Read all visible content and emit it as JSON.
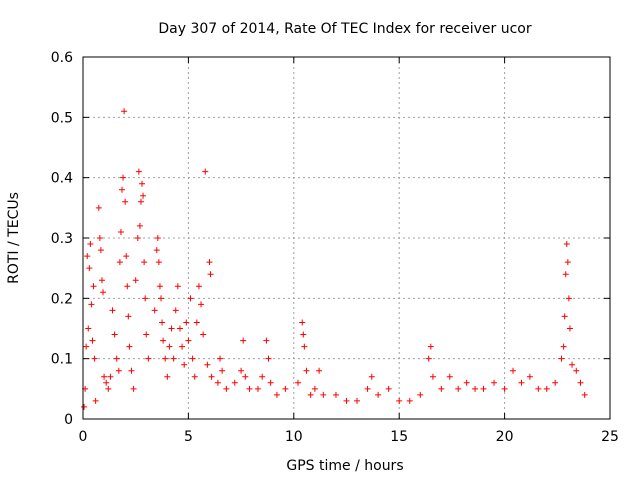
{
  "chart_data": {
    "type": "scatter",
    "title": "Day 307 of 2014, Rate Of TEC Index for receiver ucor",
    "xlabel": "GPS time / hours",
    "ylabel": "ROTI / TECUs",
    "xlim": [
      0,
      25
    ],
    "ylim": [
      0,
      0.6
    ],
    "xticks": [
      0,
      5,
      10,
      15,
      20,
      25
    ],
    "yticks": [
      0,
      0.1,
      0.2,
      0.3,
      0.4,
      0.5,
      0.6
    ],
    "xtick_labels": [
      "0",
      "5",
      "10",
      "15",
      "20",
      "25"
    ],
    "ytick_labels": [
      "0",
      "0.1",
      "0.2",
      "0.3",
      "0.4",
      "0.5",
      "0.6"
    ],
    "grid": true,
    "marker": "+",
    "series": [
      {
        "name": "ROTI",
        "color": "#ff0000",
        "points": [
          [
            0.05,
            0.02
          ],
          [
            0.1,
            0.05
          ],
          [
            0.15,
            0.12
          ],
          [
            0.2,
            0.27
          ],
          [
            0.25,
            0.15
          ],
          [
            0.3,
            0.25
          ],
          [
            0.35,
            0.29
          ],
          [
            0.4,
            0.19
          ],
          [
            0.45,
            0.13
          ],
          [
            0.5,
            0.22
          ],
          [
            0.55,
            0.1
          ],
          [
            0.6,
            0.03
          ],
          [
            0.75,
            0.35
          ],
          [
            0.8,
            0.3
          ],
          [
            0.85,
            0.28
          ],
          [
            0.9,
            0.23
          ],
          [
            0.95,
            0.21
          ],
          [
            1.0,
            0.07
          ],
          [
            1.1,
            0.06
          ],
          [
            1.2,
            0.05
          ],
          [
            1.3,
            0.07
          ],
          [
            1.4,
            0.18
          ],
          [
            1.5,
            0.14
          ],
          [
            1.6,
            0.1
          ],
          [
            1.7,
            0.08
          ],
          [
            1.75,
            0.26
          ],
          [
            1.8,
            0.31
          ],
          [
            1.85,
            0.38
          ],
          [
            1.9,
            0.4
          ],
          [
            1.95,
            0.51
          ],
          [
            2.0,
            0.36
          ],
          [
            2.05,
            0.27
          ],
          [
            2.1,
            0.22
          ],
          [
            2.15,
            0.17
          ],
          [
            2.2,
            0.12
          ],
          [
            2.3,
            0.08
          ],
          [
            2.4,
            0.05
          ],
          [
            2.5,
            0.23
          ],
          [
            2.6,
            0.3
          ],
          [
            2.65,
            0.41
          ],
          [
            2.7,
            0.32
          ],
          [
            2.75,
            0.36
          ],
          [
            2.8,
            0.39
          ],
          [
            2.85,
            0.37
          ],
          [
            2.9,
            0.26
          ],
          [
            2.95,
            0.2
          ],
          [
            3.0,
            0.14
          ],
          [
            3.1,
            0.1
          ],
          [
            3.4,
            0.18
          ],
          [
            3.5,
            0.28
          ],
          [
            3.55,
            0.3
          ],
          [
            3.6,
            0.26
          ],
          [
            3.65,
            0.22
          ],
          [
            3.7,
            0.2
          ],
          [
            3.75,
            0.16
          ],
          [
            3.8,
            0.13
          ],
          [
            3.9,
            0.1
          ],
          [
            4.0,
            0.07
          ],
          [
            4.1,
            0.12
          ],
          [
            4.2,
            0.15
          ],
          [
            4.3,
            0.1
          ],
          [
            4.4,
            0.18
          ],
          [
            4.5,
            0.22
          ],
          [
            4.6,
            0.15
          ],
          [
            4.7,
            0.12
          ],
          [
            4.8,
            0.09
          ],
          [
            4.9,
            0.16
          ],
          [
            5.0,
            0.13
          ],
          [
            5.1,
            0.2
          ],
          [
            5.2,
            0.1
          ],
          [
            5.3,
            0.07
          ],
          [
            5.4,
            0.16
          ],
          [
            5.5,
            0.22
          ],
          [
            5.6,
            0.19
          ],
          [
            5.7,
            0.14
          ],
          [
            5.8,
            0.41
          ],
          [
            5.9,
            0.09
          ],
          [
            6.0,
            0.26
          ],
          [
            6.05,
            0.24
          ],
          [
            6.1,
            0.07
          ],
          [
            6.4,
            0.06
          ],
          [
            6.5,
            0.1
          ],
          [
            6.6,
            0.08
          ],
          [
            6.8,
            0.05
          ],
          [
            7.2,
            0.06
          ],
          [
            7.5,
            0.08
          ],
          [
            7.6,
            0.13
          ],
          [
            7.7,
            0.07
          ],
          [
            7.9,
            0.05
          ],
          [
            8.3,
            0.05
          ],
          [
            8.5,
            0.07
          ],
          [
            8.7,
            0.13
          ],
          [
            8.8,
            0.1
          ],
          [
            8.9,
            0.06
          ],
          [
            9.2,
            0.04
          ],
          [
            9.6,
            0.05
          ],
          [
            10.2,
            0.06
          ],
          [
            10.4,
            0.16
          ],
          [
            10.45,
            0.14
          ],
          [
            10.5,
            0.12
          ],
          [
            10.6,
            0.08
          ],
          [
            10.8,
            0.04
          ],
          [
            11.0,
            0.05
          ],
          [
            11.2,
            0.08
          ],
          [
            11.4,
            0.04
          ],
          [
            12.0,
            0.04
          ],
          [
            12.5,
            0.03
          ],
          [
            13.0,
            0.03
          ],
          [
            13.5,
            0.05
          ],
          [
            13.7,
            0.07
          ],
          [
            14.0,
            0.04
          ],
          [
            14.5,
            0.05
          ],
          [
            15.0,
            0.03
          ],
          [
            15.5,
            0.03
          ],
          [
            16.0,
            0.04
          ],
          [
            16.4,
            0.1
          ],
          [
            16.5,
            0.12
          ],
          [
            16.6,
            0.07
          ],
          [
            17.0,
            0.05
          ],
          [
            17.4,
            0.07
          ],
          [
            17.8,
            0.05
          ],
          [
            18.2,
            0.06
          ],
          [
            18.6,
            0.05
          ],
          [
            19.0,
            0.05
          ],
          [
            19.5,
            0.06
          ],
          [
            20.0,
            0.05
          ],
          [
            20.4,
            0.08
          ],
          [
            20.8,
            0.06
          ],
          [
            21.2,
            0.07
          ],
          [
            21.6,
            0.05
          ],
          [
            22.0,
            0.05
          ],
          [
            22.4,
            0.06
          ],
          [
            22.7,
            0.1
          ],
          [
            22.8,
            0.12
          ],
          [
            22.85,
            0.17
          ],
          [
            22.9,
            0.24
          ],
          [
            22.95,
            0.29
          ],
          [
            23.0,
            0.26
          ],
          [
            23.05,
            0.2
          ],
          [
            23.1,
            0.15
          ],
          [
            23.2,
            0.09
          ],
          [
            23.4,
            0.08
          ],
          [
            23.6,
            0.06
          ],
          [
            23.8,
            0.04
          ]
        ]
      }
    ]
  }
}
